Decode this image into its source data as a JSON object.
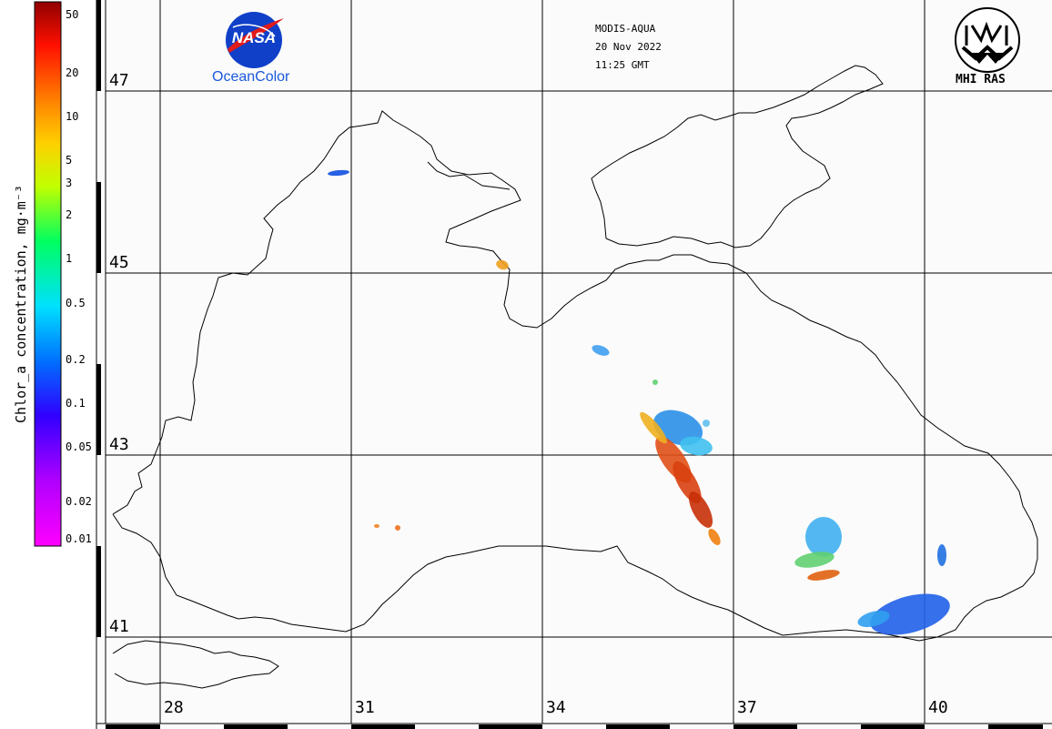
{
  "header": {
    "sensor": "MODIS-AQUA",
    "date": "20 Nov 2022",
    "time": "11:25 GMT"
  },
  "logos": {
    "left_badge_text": "NASA",
    "left_label": "OceanColor",
    "right_label": "MHI RAS"
  },
  "colorbar": {
    "title": "Chlor_a concentration, mg·m⁻³",
    "ticks": [
      "50",
      "20",
      "10",
      "5",
      "3",
      "2",
      "1",
      "0.5",
      "0.2",
      "0.1",
      "0.05",
      "0.02",
      "0.01"
    ]
  },
  "latitude_labels": [
    "47",
    "45",
    "43",
    "41"
  ],
  "longitude_labels": [
    "28",
    "31",
    "34",
    "37",
    "40"
  ],
  "colors": {
    "background": "#fbfbfb",
    "grid": "#000000",
    "coast": "#000000",
    "nasa_blue": "#1040c8",
    "oceancolor_blue": "#1a5adc"
  }
}
